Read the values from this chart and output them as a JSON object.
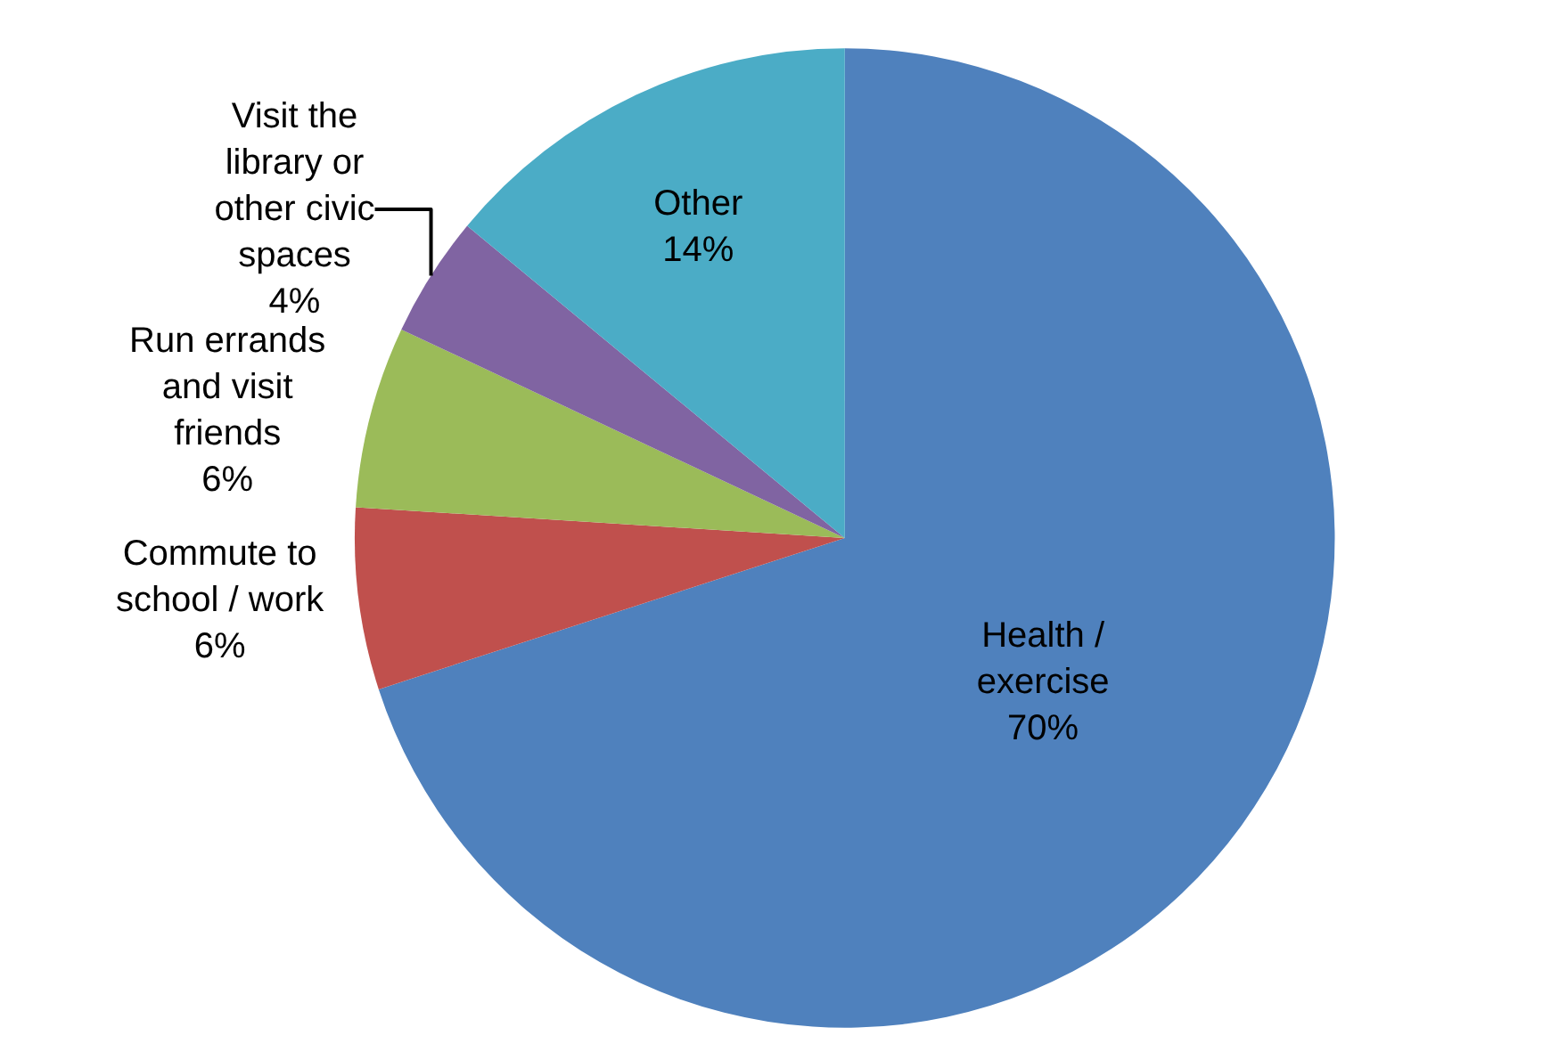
{
  "chart_data": {
    "type": "pie",
    "categories": [
      "Health / exercise",
      "Commute to school / work",
      "Run errands and visit friends",
      "Visit the library or other civic spaces",
      "Other"
    ],
    "values": [
      70,
      6,
      6,
      4,
      14
    ],
    "value_labels": [
      "70%",
      "6%",
      "6%",
      "4%",
      "14%"
    ],
    "colors": [
      "#4f81bd",
      "#c0504d",
      "#9bbb59",
      "#8064a2",
      "#4bacc6"
    ],
    "legend": false
  }
}
